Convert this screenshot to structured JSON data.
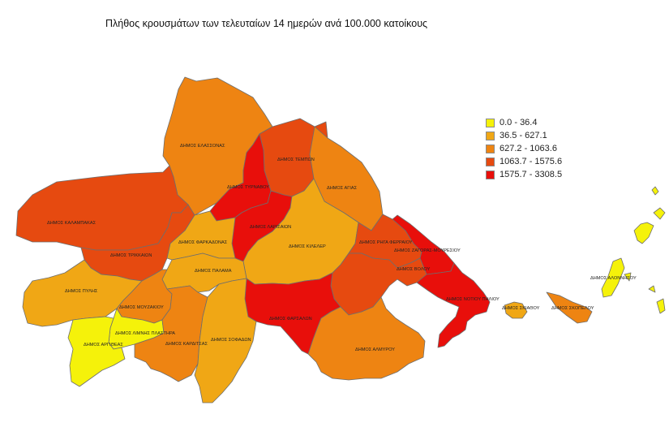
{
  "title": "Πλήθος κρουσμάτων των τελευταίων 14 ημερών ανά 100.000 κατοίκους",
  "legend": [
    {
      "label": "0.0 - 36.4",
      "color": "#f5f20a"
    },
    {
      "label": "36.5 - 627.1",
      "color": "#f0a715"
    },
    {
      "label": "627.2 - 1063.6",
      "color": "#ee8412"
    },
    {
      "label": "1063.7 - 1575.6",
      "color": "#e64a10"
    },
    {
      "label": "1575.7 - 3308.5",
      "color": "#e80f0b"
    }
  ],
  "regions": [
    {
      "id": "elassonas",
      "name": "ΔΗΜΟΣ ΕΛΑΣΣΟΝΑΣ",
      "class_index": 2
    },
    {
      "id": "tempon",
      "name": "ΔΗΜΟΣ ΤΕΜΠΩΝ",
      "class_index": 3
    },
    {
      "id": "agias",
      "name": "ΔΗΜΟΣ ΑΓΙΑΣ",
      "class_index": 2
    },
    {
      "id": "tyrnavou",
      "name": "ΔΗΜΟΣ ΤΥΡΝΑΒΟΥ",
      "class_index": 4
    },
    {
      "id": "larissaion",
      "name": "ΔΗΜΟΣ ΛΑΡΙΣΑΙΩΝ",
      "class_index": 4
    },
    {
      "id": "kalampakas",
      "name": "ΔΗΜΟΣ ΚΑΛΑΜΠΑΚΑΣ",
      "class_index": 3
    },
    {
      "id": "trikkaion",
      "name": "ΔΗΜΟΣ ΤΡΙΚΚΑΙΩΝ",
      "class_index": 3
    },
    {
      "id": "farkadonas",
      "name": "ΔΗΜΟΣ ΦΑΡΚΑΔΟΝΑΣ",
      "class_index": 1
    },
    {
      "id": "kileler",
      "name": "ΔΗΜΟΣ ΚΙΛΕΛΕΡ",
      "class_index": 1
    },
    {
      "id": "rigas",
      "name": "ΔΗΜΟΣ ΡΗΓΑ ΦΕΡΡΑΙΟΥ",
      "class_index": 3
    },
    {
      "id": "zagora",
      "name": "ΔΗΜΟΣ ΖΑΓΟΡΑΣ-ΜΟΥΡΕΣΙΟΥ",
      "class_index": 4
    },
    {
      "id": "volou",
      "name": "ΔΗΜΟΣ ΒΟΛΟΥ",
      "class_index": 3
    },
    {
      "id": "notio",
      "name": "ΔΗΜΟΣ ΝΟΤΙΟΥ ΠΗΛΙΟΥ",
      "class_index": 4
    },
    {
      "id": "pylis",
      "name": "ΔΗΜΟΣ ΠΥΛΗΣ",
      "class_index": 1
    },
    {
      "id": "palama",
      "name": "ΔΗΜΟΣ ΠΑΛΑΜΑ",
      "class_index": 1
    },
    {
      "id": "farsalon",
      "name": "ΔΗΜΟΣ ΦΑΡΣΑΛΩΝ",
      "class_index": 4
    },
    {
      "id": "mouzakiou",
      "name": "ΔΗΜΟΣ ΜΟΥΖΑΚΙΟΥ",
      "class_index": 2
    },
    {
      "id": "limnis",
      "name": "ΔΗΜΟΣ ΛΙΜΝΗΣ ΠΛΑΣΤΗΡΑ",
      "class_index": 0
    },
    {
      "id": "argitheas",
      "name": "ΔΗΜΟΣ ΑΡΓΙΘΕΑΣ",
      "class_index": 0
    },
    {
      "id": "karditsas",
      "name": "ΔΗΜΟΣ ΚΑΡΔΙΤΣΑΣ",
      "class_index": 2
    },
    {
      "id": "sofadon",
      "name": "ΔΗΜΟΣ ΣΟΦΑΔΩΝ",
      "class_index": 1
    },
    {
      "id": "almyrou",
      "name": "ΔΗΜΟΣ ΑΛΜΥΡΟΥ",
      "class_index": 2
    },
    {
      "id": "skiathou",
      "name": "ΔΗΜΟΣ ΣΚΙΑΘΟΥ",
      "class_index": 1
    },
    {
      "id": "skopelou",
      "name": "ΔΗΜΟΣ ΣΚΟΠΕΛΟΥ",
      "class_index": 2
    },
    {
      "id": "alonnisou",
      "name": "ΔΗΜΟΣ ΑΛΟΝΝΗΣΟΥ",
      "class_index": 0
    }
  ]
}
